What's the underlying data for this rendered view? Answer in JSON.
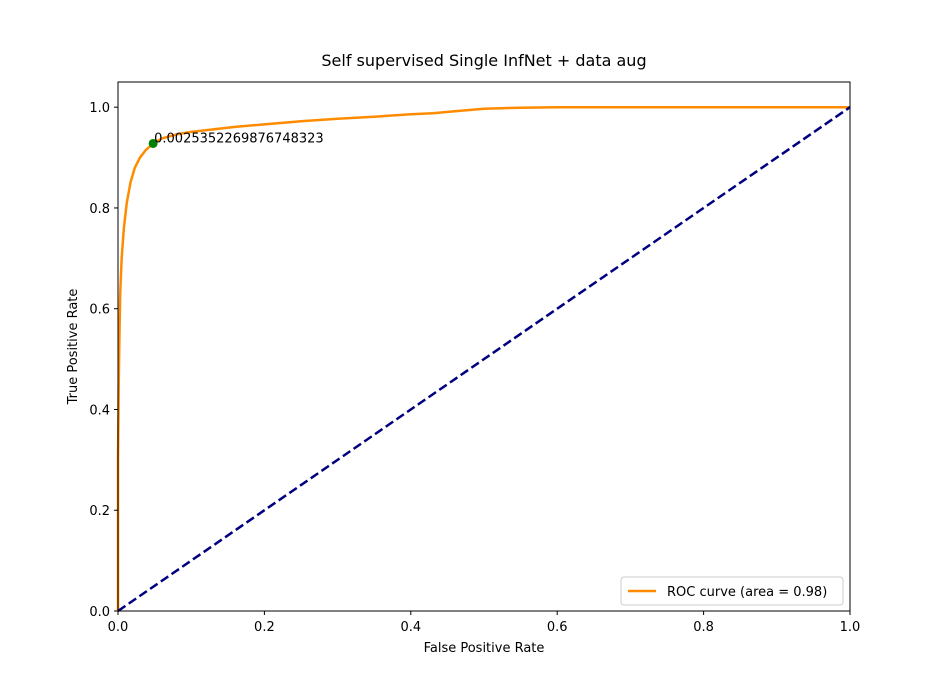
{
  "chart_data": {
    "type": "line",
    "title": "Self supervised Single InfNet + data aug",
    "xlabel": "False Positive Rate",
    "ylabel": "True Positive Rate",
    "xlim": [
      0.0,
      1.0
    ],
    "ylim": [
      0.0,
      1.05
    ],
    "x_ticks": [
      0.0,
      0.2,
      0.4,
      0.6,
      0.8,
      1.0
    ],
    "y_ticks": [
      0.0,
      0.2,
      0.4,
      0.6,
      0.8,
      1.0
    ],
    "x_tick_labels": [
      "0.0",
      "0.2",
      "0.4",
      "0.6",
      "0.8",
      "1.0"
    ],
    "y_tick_labels": [
      "0.0",
      "0.2",
      "0.4",
      "0.6",
      "0.8",
      "1.0"
    ],
    "grid": false,
    "legend_position": "lower-right",
    "series": [
      {
        "name": "ROC curve (area = 0.98)",
        "color": "#ff8c00",
        "style": "solid",
        "x": [
          0.0,
          0.0,
          0.001,
          0.002,
          0.003,
          0.005,
          0.008,
          0.012,
          0.017,
          0.023,
          0.03,
          0.038,
          0.048,
          0.06,
          0.08,
          0.1,
          0.13,
          0.16,
          0.2,
          0.25,
          0.3,
          0.35,
          0.4,
          0.43,
          0.46,
          0.5,
          0.55,
          0.6,
          0.68,
          0.8,
          0.9,
          1.0
        ],
        "y": [
          0.0,
          0.3,
          0.45,
          0.55,
          0.63,
          0.7,
          0.76,
          0.81,
          0.85,
          0.88,
          0.9,
          0.915,
          0.928,
          0.938,
          0.946,
          0.951,
          0.956,
          0.961,
          0.966,
          0.972,
          0.977,
          0.981,
          0.986,
          0.988,
          0.992,
          0.997,
          0.999,
          1.0,
          1.0,
          1.0,
          1.0,
          1.0
        ]
      },
      {
        "name": "",
        "color": "#000080",
        "style": "dashed",
        "x": [
          0.0,
          1.0
        ],
        "y": [
          0.0,
          1.0
        ]
      }
    ],
    "marker": {
      "x": 0.048,
      "y": 0.928,
      "color": "#008000",
      "label": "0.0025352269876748323"
    }
  }
}
